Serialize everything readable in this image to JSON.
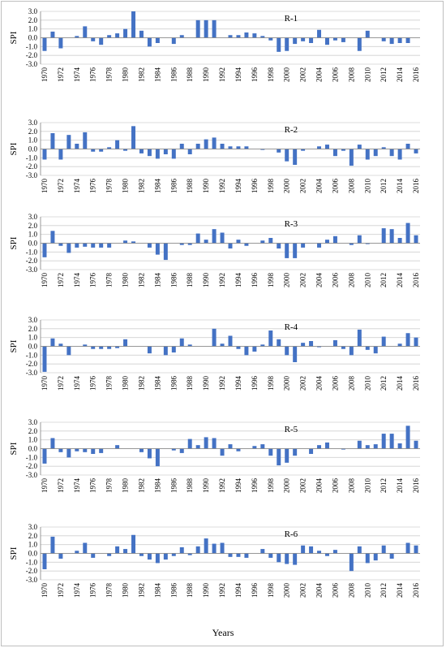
{
  "figure": {
    "xlabel": "Years",
    "ylabel": "SPI"
  },
  "style": {
    "bar_color": "#4472C4",
    "grid_color": "#d0d0d0",
    "axis_color": "#808080"
  },
  "chart_data": [
    {
      "type": "bar",
      "title": "R-1",
      "ylabel": "SPI",
      "ylim": [
        -3.0,
        3.0
      ],
      "yticks": [
        "3.0",
        "2.0",
        "1.0",
        "0.0",
        "-1.0",
        "-2.0",
        "-3.0"
      ],
      "grid": true,
      "x": [
        1970,
        1971,
        1972,
        1973,
        1974,
        1975,
        1976,
        1977,
        1978,
        1979,
        1980,
        1981,
        1982,
        1983,
        1984,
        1985,
        1986,
        1987,
        1988,
        1989,
        1990,
        1991,
        1992,
        1993,
        1994,
        1995,
        1996,
        1997,
        1998,
        1999,
        2000,
        2001,
        2002,
        2003,
        2004,
        2005,
        2006,
        2007,
        2008,
        2009,
        2010,
        2011,
        2012,
        2013,
        2014,
        2015,
        2016
      ],
      "xtick_labels": [
        "1970",
        "1972",
        "1974",
        "1976",
        "1978",
        "1980",
        "1982",
        "1984",
        "1986",
        "1988",
        "1990",
        "1992",
        "1994",
        "1996",
        "1998",
        "2000",
        "2002",
        "2004",
        "2006",
        "2008",
        "2010",
        "2012",
        "2014",
        "2016"
      ],
      "values": [
        -1.5,
        0.7,
        -1.2,
        0.0,
        0.2,
        1.3,
        -0.4,
        -0.8,
        0.3,
        0.5,
        1.0,
        3.0,
        0.8,
        -1.0,
        -0.6,
        0.0,
        -0.7,
        0.3,
        0.0,
        2.0,
        2.0,
        2.0,
        0.0,
        0.3,
        0.3,
        0.6,
        0.5,
        0.2,
        -0.3,
        -1.6,
        -1.5,
        -0.7,
        -0.4,
        -0.6,
        0.9,
        -0.8,
        -0.3,
        -0.5,
        0.0,
        -1.5,
        0.8,
        0.0,
        -0.4,
        -0.7,
        -0.6,
        -0.6,
        0.0
      ]
    },
    {
      "type": "bar",
      "title": "R-2",
      "ylabel": "SPI",
      "ylim": [
        -3.0,
        3.0
      ],
      "yticks": [
        "3.0",
        "2.0",
        "1.0",
        "0.0",
        "-1.0",
        "-2.0",
        "-3.0"
      ],
      "grid": true,
      "x": [
        1970,
        1971,
        1972,
        1973,
        1974,
        1975,
        1976,
        1977,
        1978,
        1979,
        1980,
        1981,
        1982,
        1983,
        1984,
        1985,
        1986,
        1987,
        1988,
        1989,
        1990,
        1991,
        1992,
        1993,
        1994,
        1995,
        1996,
        1997,
        1998,
        1999,
        2000,
        2001,
        2002,
        2003,
        2004,
        2005,
        2006,
        2007,
        2008,
        2009,
        2010,
        2011,
        2012,
        2013,
        2014,
        2015,
        2016
      ],
      "xtick_labels": [
        "1970",
        "1972",
        "1974",
        "1976",
        "1978",
        "1980",
        "1982",
        "1984",
        "1986",
        "1988",
        "1990",
        "1992",
        "1994",
        "1996",
        "1998",
        "2000",
        "2002",
        "2004",
        "2006",
        "2008",
        "2010",
        "2012",
        "2014",
        "2016"
      ],
      "values": [
        -1.2,
        1.8,
        -1.2,
        1.6,
        0.6,
        1.9,
        -0.3,
        -0.3,
        0.2,
        1.0,
        -0.2,
        2.6,
        -0.5,
        -0.8,
        -1.1,
        -0.6,
        -1.1,
        0.6,
        -0.6,
        0.6,
        1.1,
        1.3,
        0.6,
        0.3,
        0.3,
        0.3,
        0.0,
        -0.1,
        0.0,
        -0.4,
        -1.4,
        -1.8,
        -0.2,
        0.0,
        0.3,
        0.5,
        -0.8,
        -0.2,
        -1.9,
        0.5,
        -1.2,
        -0.8,
        0.2,
        -0.8,
        -1.2,
        0.6,
        -0.5
      ]
    },
    {
      "type": "bar",
      "title": "R-3",
      "ylabel": "SPI",
      "ylim": [
        -3.0,
        3.0
      ],
      "yticks": [
        "3.0",
        "2.0",
        "1.0",
        "0.0",
        "-1.0",
        "-2.0",
        "-3.0"
      ],
      "grid": true,
      "x": [
        1970,
        1971,
        1972,
        1973,
        1974,
        1975,
        1976,
        1977,
        1978,
        1979,
        1980,
        1981,
        1982,
        1983,
        1984,
        1985,
        1986,
        1987,
        1988,
        1989,
        1990,
        1991,
        1992,
        1993,
        1994,
        1995,
        1996,
        1997,
        1998,
        1999,
        2000,
        2001,
        2002,
        2003,
        2004,
        2005,
        2006,
        2007,
        2008,
        2009,
        2010,
        2011,
        2012,
        2013,
        2014,
        2015,
        2016
      ],
      "xtick_labels": [
        "1970",
        "1972",
        "1974",
        "1976",
        "1978",
        "1980",
        "1982",
        "1984",
        "1986",
        "1988",
        "1990",
        "1992",
        "1994",
        "1996",
        "1998",
        "2000",
        "2002",
        "2004",
        "2006",
        "2008",
        "2010",
        "2012",
        "2014",
        "2016"
      ],
      "values": [
        -1.6,
        1.4,
        -0.3,
        -1.1,
        -0.5,
        -0.4,
        -0.5,
        -0.5,
        -0.5,
        0.0,
        0.3,
        0.2,
        0.0,
        -0.5,
        -1.3,
        -1.9,
        0.0,
        -0.2,
        -0.2,
        1.1,
        0.4,
        1.6,
        1.2,
        -0.6,
        0.4,
        -0.3,
        0.0,
        0.3,
        0.6,
        -0.6,
        -1.7,
        -1.7,
        -0.5,
        0.0,
        -0.5,
        0.4,
        0.8,
        0.0,
        -0.2,
        0.9,
        -0.1,
        0.0,
        1.7,
        1.6,
        0.6,
        2.3,
        0.9
      ]
    },
    {
      "type": "bar",
      "title": "R-4",
      "ylabel": "SPI",
      "ylim": [
        -3.0,
        3.0
      ],
      "yticks": [
        "3.0",
        "2.0",
        "1.0",
        "0.0",
        "-1.0",
        "-2.0",
        "-3.0"
      ],
      "grid": true,
      "x": [
        1970,
        1971,
        1972,
        1973,
        1974,
        1975,
        1976,
        1977,
        1978,
        1979,
        1980,
        1981,
        1982,
        1983,
        1984,
        1985,
        1986,
        1987,
        1988,
        1989,
        1990,
        1991,
        1992,
        1993,
        1994,
        1995,
        1996,
        1997,
        1998,
        1999,
        2000,
        2001,
        2002,
        2003,
        2004,
        2005,
        2006,
        2007,
        2008,
        2009,
        2010,
        2011,
        2012,
        2013,
        2014,
        2015,
        2016
      ],
      "xtick_labels": [
        "1970",
        "1972",
        "1974",
        "1976",
        "1978",
        "1980",
        "1982",
        "1984",
        "1986",
        "1988",
        "1990",
        "1992",
        "1994",
        "1996",
        "1998",
        "2000",
        "2002",
        "2004",
        "2006",
        "2008",
        "2010",
        "2012",
        "2014",
        "2016"
      ],
      "values": [
        -2.9,
        0.9,
        0.3,
        -1.0,
        0.0,
        0.2,
        -0.3,
        -0.3,
        -0.3,
        -0.2,
        0.8,
        0.0,
        0.0,
        -0.8,
        0.0,
        -1.0,
        -0.7,
        0.9,
        0.2,
        0.0,
        0.0,
        2.0,
        0.3,
        1.2,
        -0.3,
        -1.0,
        -0.6,
        0.2,
        1.8,
        0.8,
        -1.0,
        -1.8,
        0.4,
        0.6,
        -0.1,
        0.0,
        0.7,
        -0.3,
        -1.0,
        1.9,
        -0.4,
        -0.8,
        1.1,
        0.0,
        0.3,
        1.5,
        1.0
      ]
    },
    {
      "type": "bar",
      "title": "R-5",
      "ylabel": "SPI",
      "ylim": [
        -3.0,
        3.0
      ],
      "yticks": [
        "3.0",
        "2.0",
        "1.0",
        "0.0",
        "-1.0",
        "-2.0",
        "-3.0"
      ],
      "grid": true,
      "x": [
        1970,
        1971,
        1972,
        1973,
        1974,
        1975,
        1976,
        1977,
        1978,
        1979,
        1980,
        1981,
        1982,
        1983,
        1984,
        1985,
        1986,
        1987,
        1988,
        1989,
        1990,
        1991,
        1992,
        1993,
        1994,
        1995,
        1996,
        1997,
        1998,
        1999,
        2000,
        2001,
        2002,
        2003,
        2004,
        2005,
        2006,
        2007,
        2008,
        2009,
        2010,
        2011,
        2012,
        2013,
        2014,
        2015,
        2016
      ],
      "xtick_labels": [
        "1970",
        "1972",
        "1974",
        "1976",
        "1978",
        "1980",
        "1982",
        "1984",
        "1986",
        "1988",
        "1990",
        "1992",
        "1994",
        "1996",
        "1998",
        "2000",
        "2002",
        "2004",
        "2006",
        "2008",
        "2010",
        "2012",
        "2014",
        "2016"
      ],
      "values": [
        -1.7,
        1.2,
        -0.4,
        -1.0,
        -0.3,
        -0.4,
        -0.6,
        -0.5,
        0.0,
        0.4,
        0.0,
        0.0,
        -0.4,
        -1.1,
        -2.0,
        0.0,
        -0.2,
        -0.5,
        1.1,
        0.4,
        1.3,
        1.2,
        -0.8,
        0.5,
        -0.3,
        0.0,
        0.3,
        0.5,
        -0.8,
        -1.9,
        -1.6,
        -0.8,
        0.0,
        -0.6,
        0.4,
        0.7,
        0.0,
        -0.1,
        0.0,
        0.9,
        0.4,
        0.5,
        1.7,
        1.7,
        0.6,
        2.6,
        0.9
      ]
    },
    {
      "type": "bar",
      "title": "R-6",
      "ylabel": "SPI",
      "ylim": [
        -3.0,
        3.0
      ],
      "yticks": [
        "3.0",
        "2.0",
        "1.0",
        "0.0",
        "-1.0",
        "-2.0",
        "-3.0"
      ],
      "grid": true,
      "x": [
        1970,
        1971,
        1972,
        1973,
        1974,
        1975,
        1976,
        1977,
        1978,
        1979,
        1980,
        1981,
        1982,
        1983,
        1984,
        1985,
        1986,
        1987,
        1988,
        1989,
        1990,
        1991,
        1992,
        1993,
        1994,
        1995,
        1996,
        1997,
        1998,
        1999,
        2000,
        2001,
        2002,
        2003,
        2004,
        2005,
        2006,
        2007,
        2008,
        2009,
        2010,
        2011,
        2012,
        2013,
        2014,
        2015,
        2016
      ],
      "xtick_labels": [
        "1970",
        "1972",
        "1974",
        "1976",
        "1978",
        "1980",
        "1982",
        "1984",
        "1986",
        "1988",
        "1990",
        "1992",
        "1994",
        "1996",
        "1998",
        "2000",
        "2002",
        "2004",
        "2006",
        "2008",
        "2010",
        "2012",
        "2014",
        "2016"
      ],
      "values": [
        -1.8,
        1.9,
        -0.6,
        0.0,
        0.3,
        1.2,
        -0.5,
        0.0,
        -0.3,
        0.8,
        0.5,
        2.1,
        -0.3,
        -0.7,
        -1.1,
        -0.7,
        -0.3,
        0.7,
        -0.2,
        0.8,
        1.7,
        1.1,
        1.2,
        -0.4,
        -0.4,
        -0.5,
        0.0,
        0.5,
        -0.5,
        -1.0,
        -1.2,
        -1.3,
        0.9,
        0.8,
        0.3,
        -0.3,
        0.4,
        0.0,
        -2.0,
        0.8,
        -1.1,
        -0.8,
        0.9,
        -0.6,
        0.0,
        1.2,
        0.9
      ]
    }
  ]
}
